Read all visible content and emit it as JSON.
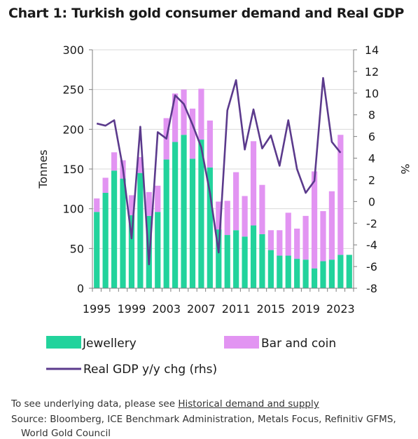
{
  "title": "Chart 1: Turkish gold consumer demand and Real GDP",
  "chart_data": {
    "type": "bar",
    "stacked": true,
    "years": [
      1995,
      1996,
      1997,
      1998,
      1999,
      2000,
      2001,
      2002,
      2003,
      2004,
      2005,
      2006,
      2007,
      2008,
      2009,
      2010,
      2011,
      2012,
      2013,
      2014,
      2015,
      2016,
      2017,
      2018,
      2019,
      2020,
      2021,
      2022,
      2023,
      2024
    ],
    "x_tick_labels": [
      "1995",
      "1999",
      "2003",
      "2007",
      "2011",
      "2015",
      "2019",
      "2023"
    ],
    "x_tick_years": [
      1995,
      1999,
      2003,
      2007,
      2011,
      2015,
      2019,
      2023
    ],
    "series": [
      {
        "name": "Jewellery",
        "axis": "left",
        "color": "#22D39C",
        "values": [
          96,
          120,
          148,
          138,
          92,
          145,
          91,
          96,
          162,
          184,
          193,
          163,
          187,
          152,
          74,
          67,
          73,
          65,
          79,
          68,
          48,
          41,
          41,
          37,
          36,
          25,
          34,
          36,
          42,
          42
        ]
      },
      {
        "name": "Bar and coin",
        "axis": "left",
        "color": "#E294F2",
        "values": [
          17,
          19,
          23,
          23,
          25,
          20,
          30,
          33,
          52,
          61,
          57,
          63,
          64,
          59,
          35,
          43,
          73,
          51,
          106,
          62,
          25,
          32,
          54,
          38,
          55,
          122,
          63,
          86,
          151,
          0
        ]
      },
      {
        "name": "Real GDP y/y chg (rhs)",
        "axis": "right",
        "type": "line",
        "color": "#5B3A8C",
        "values": [
          7.2,
          7.0,
          7.5,
          3.1,
          -3.4,
          6.9,
          -5.8,
          6.4,
          5.8,
          9.8,
          9.0,
          7.1,
          5.0,
          0.8,
          -4.7,
          8.4,
          11.2,
          4.8,
          8.5,
          4.9,
          6.1,
          3.3,
          7.5,
          3.0,
          0.8,
          1.9,
          11.4,
          5.5,
          4.5
        ]
      }
    ],
    "y_left": {
      "label": "Tonnes",
      "min": 0,
      "max": 300,
      "ticks": [
        "0",
        "50",
        "100",
        "150",
        "200",
        "250",
        "300"
      ]
    },
    "y_right": {
      "label": "%",
      "min": -8,
      "max": 14,
      "ticks": [
        "-8",
        "-6",
        "-4",
        "-2",
        "0",
        "2",
        "4",
        "6",
        "8",
        "10",
        "12",
        "14"
      ]
    },
    "grid": true,
    "legend": {
      "placement": "bottom",
      "items": [
        "Jewellery",
        "Bar and coin",
        "Real GDP y/y chg (rhs)"
      ]
    }
  },
  "footer": {
    "line1_prefix": "To see underlying data, please see ",
    "line1_link": "Historical demand and supply",
    "line2": "Source: Bloomberg, ICE Benchmark Administration, Metals Focus, Refinitiv GFMS,",
    "line3": "World Gold Council"
  }
}
